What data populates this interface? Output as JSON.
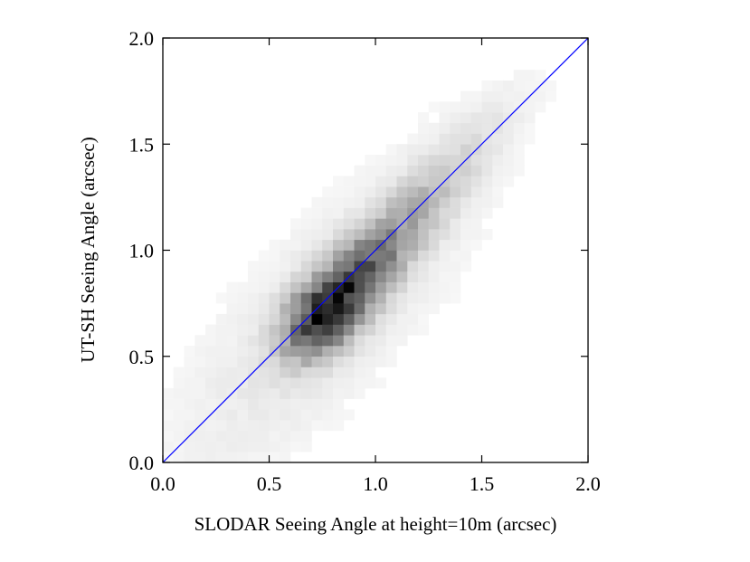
{
  "chart_data": {
    "type": "heatmap",
    "title": "",
    "xlabel": "SLODAR Seeing Angle at height=10m (arcsec)",
    "ylabel": "UT-SH Seeing Angle (arcsec)",
    "xlim": [
      0.0,
      2.0
    ],
    "ylim": [
      0.0,
      2.0
    ],
    "xticks": [
      "0.0",
      "0.5",
      "1.0",
      "1.5",
      "2.0"
    ],
    "yticks": [
      "0.0",
      "0.5",
      "1.0",
      "1.5",
      "2.0"
    ],
    "grid": false,
    "legend": "none",
    "colormap": "greys",
    "bins": [
      40,
      40
    ],
    "reference_line": {
      "from": [
        0.0,
        0.0
      ],
      "to": [
        2.0,
        2.0
      ],
      "color": "#0000ff"
    },
    "density_model": {
      "peak": [
        0.77,
        0.71
      ],
      "ridge_slope": 1.13,
      "main_width": 0.09,
      "along_spread": 0.22,
      "tail_spread": 0.55,
      "tail_weight": 0.45,
      "halo_width": 0.24,
      "halo_weight": 0.06
    }
  }
}
